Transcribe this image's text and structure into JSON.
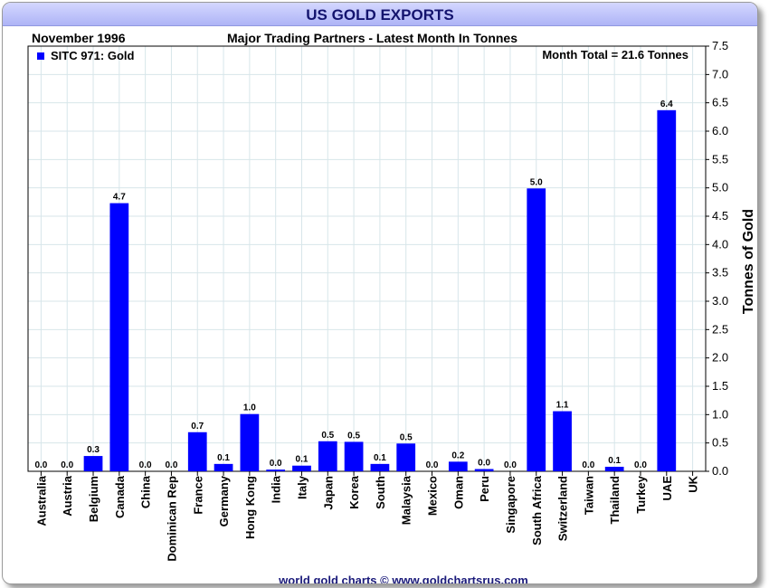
{
  "chart_data": {
    "type": "bar",
    "title": "US GOLD EXPORTS",
    "subtitle": "Major Trading Partners - Latest Month In Tonnes",
    "period": "November 1996",
    "annotation": "Month Total = 21.6 Tonnes",
    "legend": [
      "SITC 971: Gold"
    ],
    "legend_position": "top-left",
    "ylabel": "Tonnes of Gold",
    "xlabel": "",
    "ylim": [
      0,
      7.5
    ],
    "yticks": [
      "0.0",
      "0.5",
      "1.0",
      "1.5",
      "2.0",
      "2.5",
      "3.0",
      "3.5",
      "4.0",
      "4.5",
      "5.0",
      "5.5",
      "6.0",
      "6.5",
      "7.0",
      "7.5"
    ],
    "grid": true,
    "categories": [
      "Australia",
      "Austria",
      "Belgium",
      "Canada",
      "China",
      "Dominican Rep",
      "France",
      "Germany",
      "Hong Kong",
      "India",
      "Italy",
      "Japan",
      "Korea",
      "South",
      "Malaysia",
      "Mexico",
      "Oman",
      "Peru",
      "Singapore",
      "South Africa",
      "Switzerland",
      "Taiwan",
      "Thailand",
      "Turkey",
      "UAE",
      "UK"
    ],
    "values": [
      0.0,
      0.0,
      0.27,
      4.73,
      0.0,
      0.0,
      0.69,
      0.13,
      1.01,
      0.03,
      0.1,
      0.53,
      0.52,
      0.13,
      0.49,
      0.0,
      0.17,
      0.04,
      0.0,
      4.99,
      1.06,
      0.0,
      0.08,
      0.0,
      6.37,
      null
    ],
    "data_labels": [
      "0.0",
      "0.0",
      "0.3",
      "4.7",
      "0.0",
      "0.0",
      "0.7",
      "0.1",
      "1.0",
      "0.0",
      "0.1",
      "0.5",
      "0.5",
      "0.1",
      "0.5",
      "0.0",
      "0.2",
      "0.0",
      "0.0",
      "5.0",
      "1.1",
      "0.0",
      "0.1",
      "0.0",
      "6.4",
      ""
    ],
    "bar_color": "#0000ff",
    "grid_color": "#d7e6ea"
  },
  "footer": {
    "credit": "world gold charts © www.goldchartsrus.com"
  }
}
